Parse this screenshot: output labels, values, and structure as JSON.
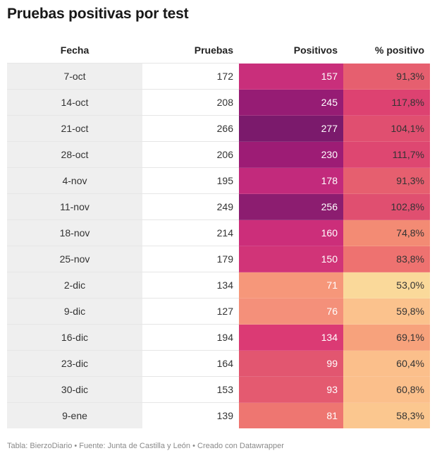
{
  "title": "Pruebas positivas por test",
  "footer": "Tabla: BierzoDiario • Fuente: Junta de Castilla y León • Creado con Datawrapper",
  "chart_data": {
    "type": "table",
    "title": "Pruebas positivas por test",
    "columns": [
      "Fecha",
      "Pruebas",
      "Positivos",
      "% positivo"
    ],
    "rows": [
      {
        "fecha": "7-oct",
        "pruebas": "172",
        "positivos": "157",
        "pct": "91,3%",
        "pos_color": "#c92f7b",
        "pct_color": "#e65f6f"
      },
      {
        "fecha": "14-oct",
        "pruebas": "208",
        "positivos": "245",
        "pct": "117,8%",
        "pos_color": "#961c74",
        "pct_color": "#dd4271"
      },
      {
        "fecha": "21-oct",
        "pruebas": "266",
        "positivos": "277",
        "pct": "104,1%",
        "pos_color": "#7b1a6c",
        "pct_color": "#e04f70"
      },
      {
        "fecha": "28-oct",
        "pruebas": "206",
        "positivos": "230",
        "pct": "111,7%",
        "pos_color": "#9d1c75",
        "pct_color": "#de4771"
      },
      {
        "fecha": "4-nov",
        "pruebas": "195",
        "positivos": "178",
        "pct": "91,3%",
        "pos_color": "#c22a7c",
        "pct_color": "#e65f6f"
      },
      {
        "fecha": "11-nov",
        "pruebas": "249",
        "positivos": "256",
        "pct": "102,8%",
        "pos_color": "#8c1d70",
        "pct_color": "#e04f70"
      },
      {
        "fecha": "18-nov",
        "pruebas": "214",
        "positivos": "160",
        "pct": "74,8%",
        "pos_color": "#cc2e7a",
        "pct_color": "#f38b74"
      },
      {
        "fecha": "25-nov",
        "pruebas": "179",
        "positivos": "150",
        "pct": "83,8%",
        "pos_color": "#d13478",
        "pct_color": "#ee7270"
      },
      {
        "fecha": "2-dic",
        "pruebas": "134",
        "positivos": "71",
        "pct": "53,0%",
        "pos_color": "#f6977a",
        "pct_color": "#fad99a"
      },
      {
        "fecha": "9-dic",
        "pruebas": "127",
        "positivos": "76",
        "pct": "59,8%",
        "pos_color": "#f4907a",
        "pct_color": "#fbc28d"
      },
      {
        "fecha": "16-dic",
        "pruebas": "194",
        "positivos": "134",
        "pct": "69,1%",
        "pos_color": "#db3a74",
        "pct_color": "#f7a27c"
      },
      {
        "fecha": "23-dic",
        "pruebas": "164",
        "positivos": "99",
        "pct": "60,4%",
        "pos_color": "#e25670",
        "pct_color": "#fbbf8b"
      },
      {
        "fecha": "30-dic",
        "pruebas": "153",
        "positivos": "93",
        "pct": "60,8%",
        "pos_color": "#e45a70",
        "pct_color": "#fbbf8b"
      },
      {
        "fecha": "9-ene",
        "pruebas": "139",
        "positivos": "81",
        "pct": "58,3%",
        "pos_color": "#ee7671",
        "pct_color": "#fbc78f"
      }
    ]
  }
}
